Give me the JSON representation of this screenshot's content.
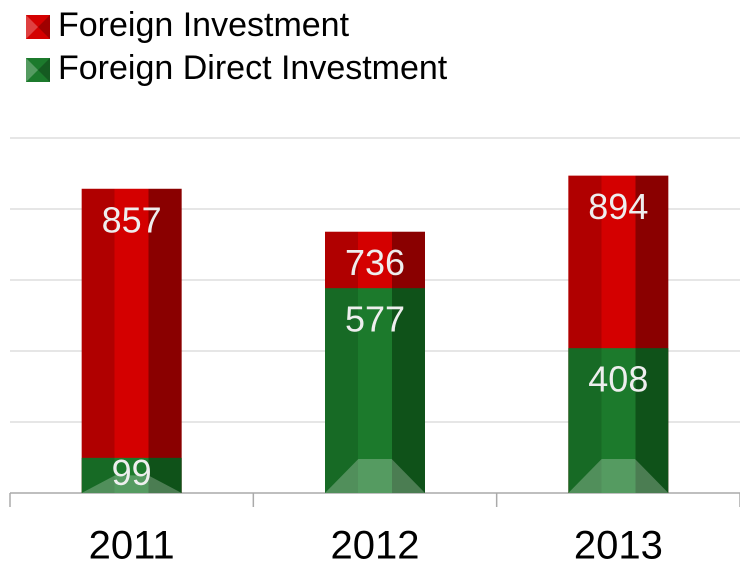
{
  "chart_data": {
    "type": "bar",
    "categories": [
      "2011",
      "2012",
      "2013"
    ],
    "series": [
      {
        "name": "Foreign Investment",
        "color": "#d40000",
        "values": [
          857,
          736,
          894
        ]
      },
      {
        "name": "Foreign Direct Investment",
        "color": "#1c7a2c",
        "values": [
          99,
          577,
          408
        ]
      }
    ],
    "ylim": [
      0,
      1000
    ],
    "yticks": [
      0,
      200,
      400,
      600,
      800,
      1000
    ],
    "grid": true,
    "legend": "top-left"
  }
}
